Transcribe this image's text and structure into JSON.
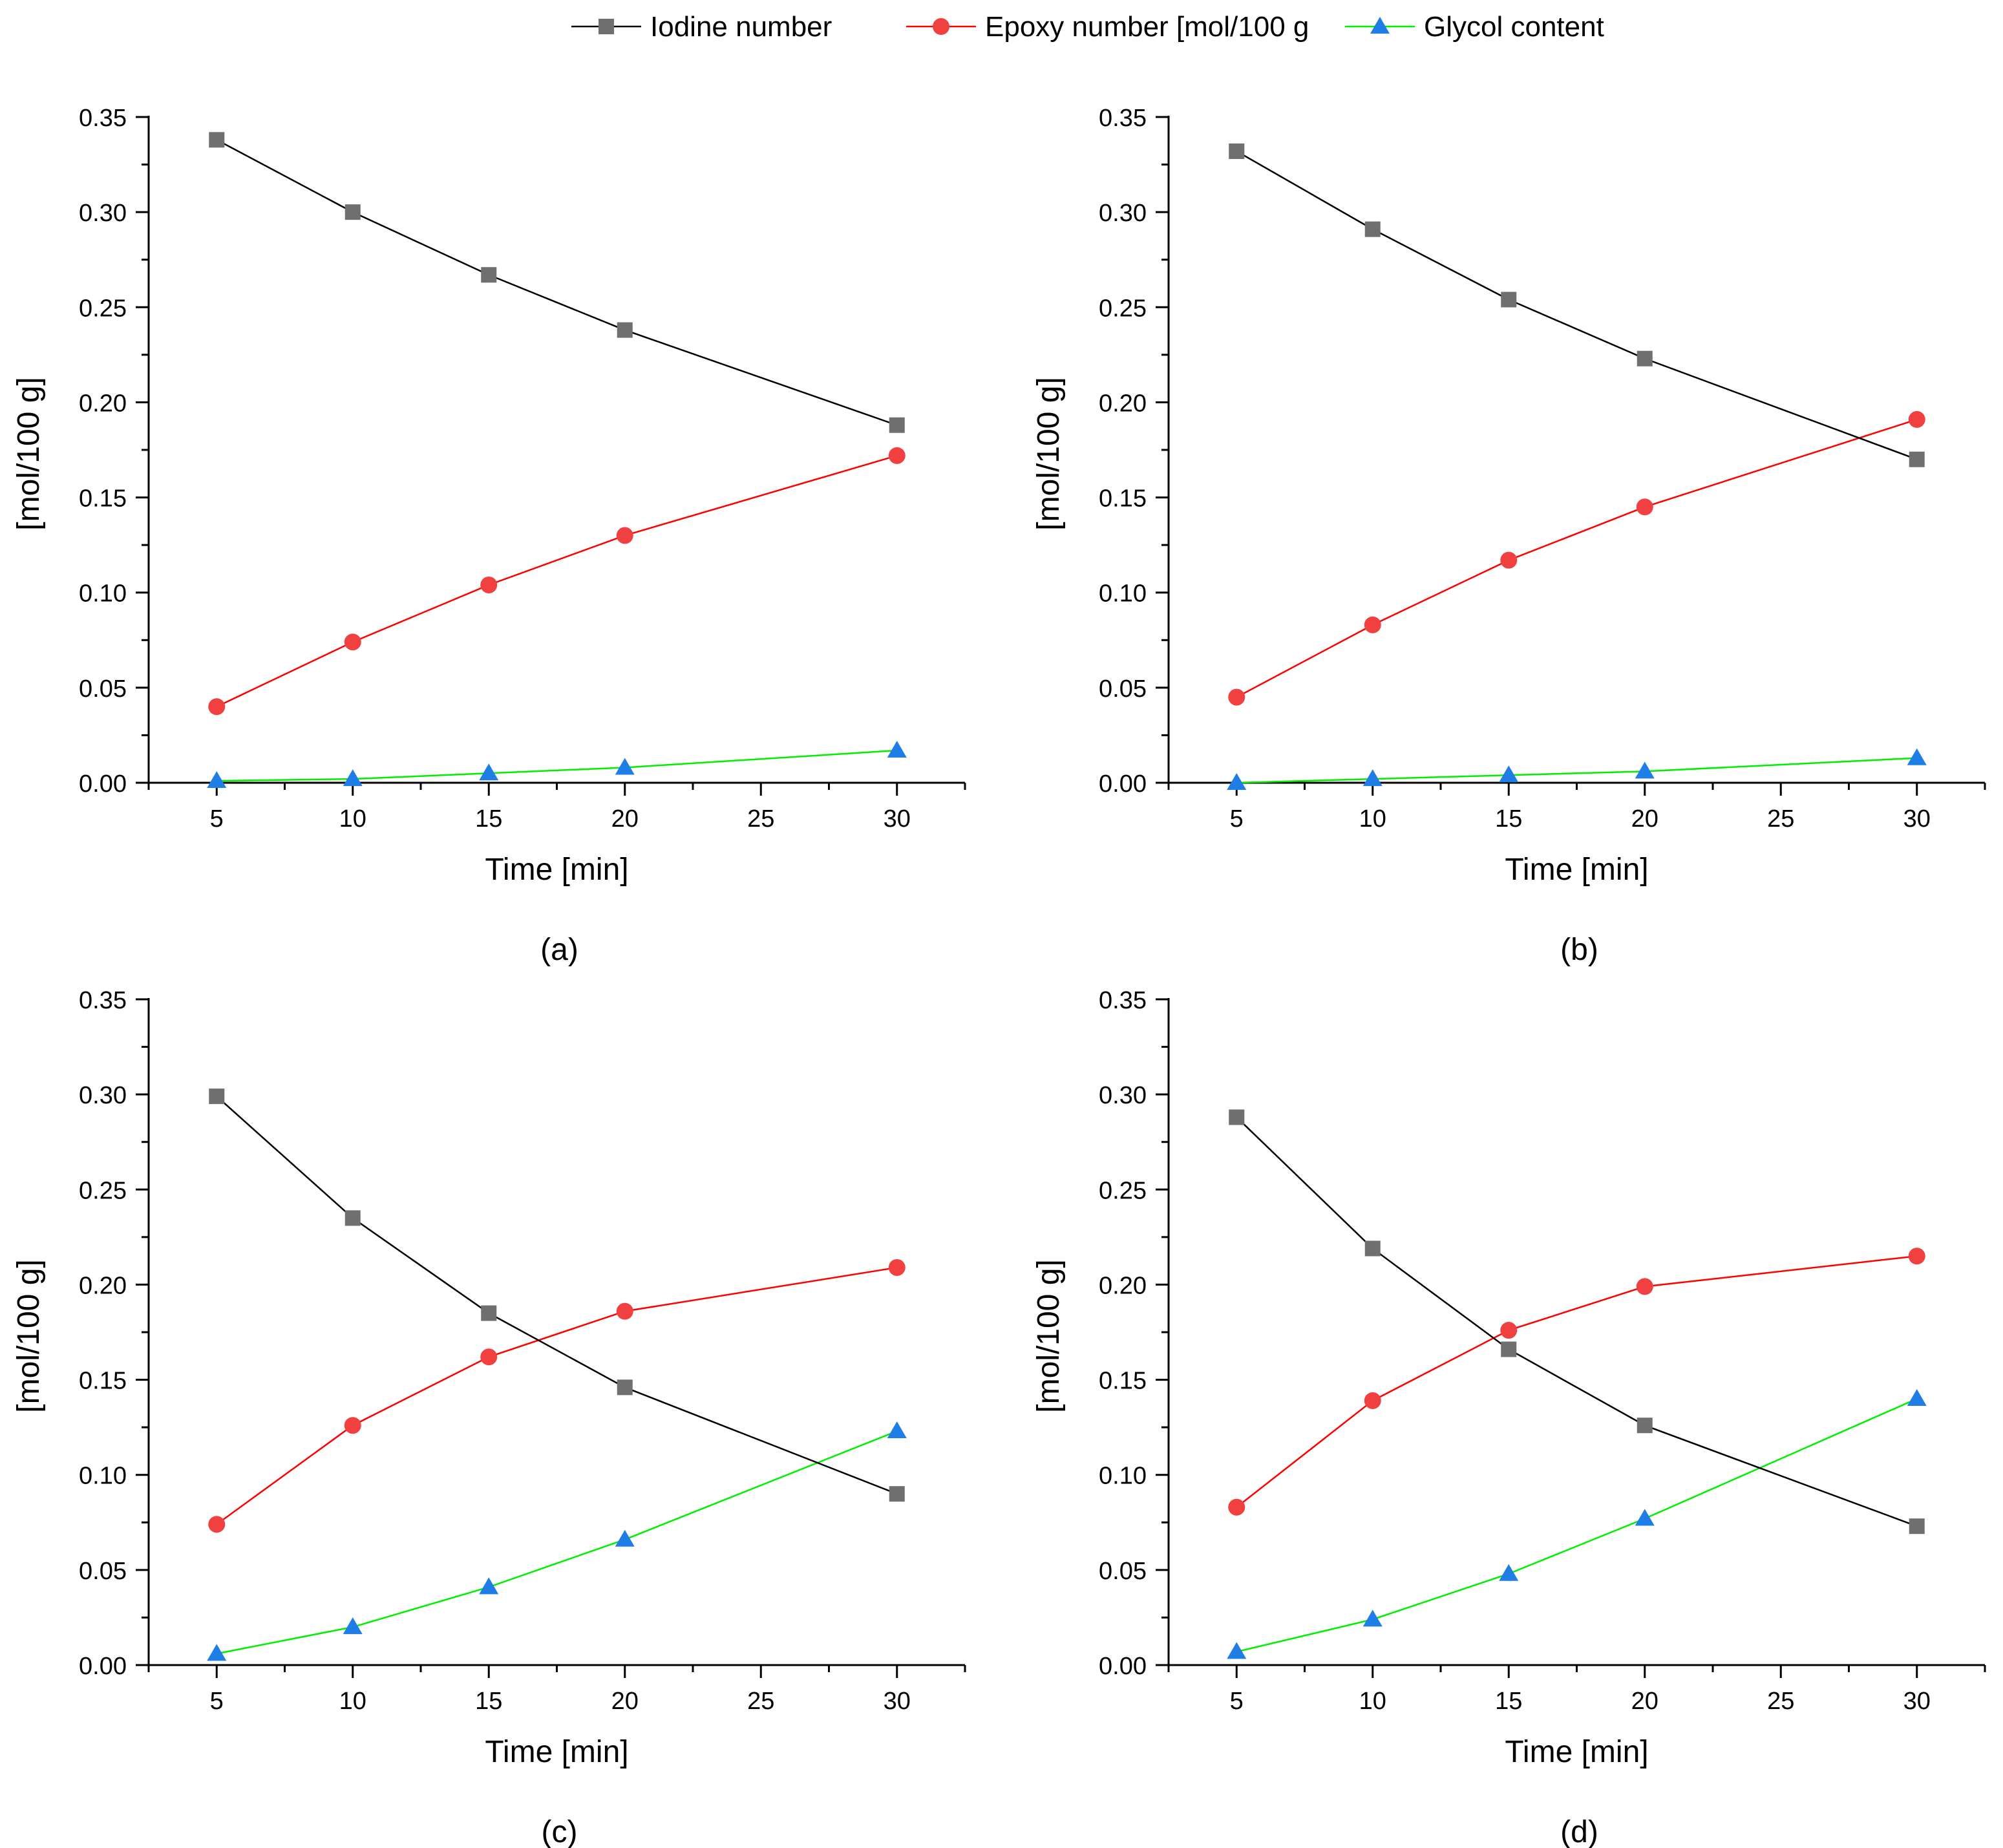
{
  "legend": {
    "series": [
      {
        "key": "iodine",
        "label": "Iodine number",
        "line_color": "#000000",
        "marker_color": "#6f6f6f",
        "marker": "square"
      },
      {
        "key": "epoxy",
        "label": "Epoxy number [mol/100 g",
        "line_color": "#ff0000",
        "marker_color": "#f04040",
        "marker": "circle"
      },
      {
        "key": "glycol",
        "label": "Glycol content",
        "line_color": "#00ee00",
        "marker_color": "#1e7ee6",
        "marker": "triangle"
      }
    ]
  },
  "chart_data": [
    {
      "type": "line",
      "panel_label": "(a)",
      "xlabel": "Time [min]",
      "ylabel": "[mol/100 g]",
      "xlim": [
        2.5,
        32.5
      ],
      "ylim": [
        0,
        0.35
      ],
      "xticks": [
        5,
        10,
        15,
        20,
        25,
        30
      ],
      "yticks": [
        0,
        0.05,
        0.1,
        0.15,
        0.2,
        0.25,
        0.3,
        0.35
      ],
      "ytick_labels": [
        "0.00",
        "0.05",
        "0.10",
        "0.15",
        "0.20",
        "0.25",
        "0.30",
        "0.35"
      ],
      "x": [
        5,
        10,
        15,
        20,
        30
      ],
      "series": [
        {
          "key": "iodine",
          "values": [
            0.338,
            0.3,
            0.267,
            0.238,
            0.188
          ]
        },
        {
          "key": "epoxy",
          "values": [
            0.04,
            0.074,
            0.104,
            0.13,
            0.172
          ]
        },
        {
          "key": "glycol",
          "values": [
            0.001,
            0.002,
            0.005,
            0.008,
            0.017
          ]
        }
      ]
    },
    {
      "type": "line",
      "panel_label": "(b)",
      "xlabel": "Time [min]",
      "ylabel": "[mol/100 g]",
      "xlim": [
        2.5,
        32.5
      ],
      "ylim": [
        0,
        0.35
      ],
      "xticks": [
        5,
        10,
        15,
        20,
        25,
        30
      ],
      "yticks": [
        0,
        0.05,
        0.1,
        0.15,
        0.2,
        0.25,
        0.3,
        0.35
      ],
      "ytick_labels": [
        "0.00",
        "0.05",
        "0.10",
        "0.15",
        "0.20",
        "0.25",
        "0.30",
        "0.35"
      ],
      "x": [
        5,
        10,
        15,
        20,
        30
      ],
      "series": [
        {
          "key": "iodine",
          "values": [
            0.332,
            0.291,
            0.254,
            0.223,
            0.17
          ]
        },
        {
          "key": "epoxy",
          "values": [
            0.045,
            0.083,
            0.117,
            0.145,
            0.191
          ]
        },
        {
          "key": "glycol",
          "values": [
            0.0,
            0.002,
            0.004,
            0.006,
            0.013
          ]
        }
      ]
    },
    {
      "type": "line",
      "panel_label": "(c)",
      "xlabel": "Time [min]",
      "ylabel": "[mol/100 g]",
      "xlim": [
        2.5,
        32.5
      ],
      "ylim": [
        0,
        0.35
      ],
      "xticks": [
        5,
        10,
        15,
        20,
        25,
        30
      ],
      "yticks": [
        0,
        0.05,
        0.1,
        0.15,
        0.2,
        0.25,
        0.3,
        0.35
      ],
      "ytick_labels": [
        "0.00",
        "0.05",
        "0.10",
        "0.15",
        "0.20",
        "0.25",
        "0.30",
        "0.35"
      ],
      "x": [
        5,
        10,
        15,
        20,
        30
      ],
      "series": [
        {
          "key": "iodine",
          "values": [
            0.299,
            0.235,
            0.185,
            0.146,
            0.09
          ]
        },
        {
          "key": "epoxy",
          "values": [
            0.074,
            0.126,
            0.162,
            0.186,
            0.209
          ]
        },
        {
          "key": "glycol",
          "values": [
            0.006,
            0.02,
            0.041,
            0.066,
            0.123
          ]
        }
      ]
    },
    {
      "type": "line",
      "panel_label": "(d)",
      "xlabel": "Time [min]",
      "ylabel": "[mol/100 g]",
      "xlim": [
        2.5,
        32.5
      ],
      "ylim": [
        0,
        0.35
      ],
      "xticks": [
        5,
        10,
        15,
        20,
        25,
        30
      ],
      "yticks": [
        0,
        0.05,
        0.1,
        0.15,
        0.2,
        0.25,
        0.3,
        0.35
      ],
      "ytick_labels": [
        "0.00",
        "0.05",
        "0.10",
        "0.15",
        "0.20",
        "0.25",
        "0.30",
        "0.35"
      ],
      "x": [
        5,
        10,
        15,
        20,
        30
      ],
      "series": [
        {
          "key": "iodine",
          "values": [
            0.288,
            0.219,
            0.166,
            0.126,
            0.073
          ]
        },
        {
          "key": "epoxy",
          "values": [
            0.083,
            0.139,
            0.176,
            0.199,
            0.215
          ]
        },
        {
          "key": "glycol",
          "values": [
            0.007,
            0.024,
            0.048,
            0.077,
            0.14
          ]
        }
      ]
    }
  ]
}
